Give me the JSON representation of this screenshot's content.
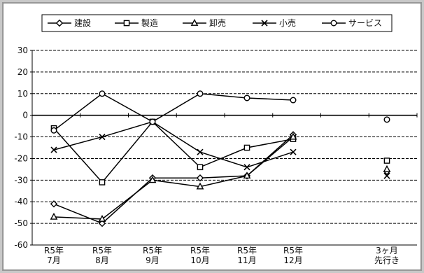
{
  "chart_data": {
    "type": "line",
    "categories": [
      [
        "R5年",
        "7月"
      ],
      [
        "R5年",
        "8月"
      ],
      [
        "R5年",
        "9月"
      ],
      [
        "R5年",
        "10月"
      ],
      [
        "R5年",
        "11月"
      ],
      [
        "R5年",
        "12月"
      ],
      [
        "3ヶ月",
        "先行き"
      ]
    ],
    "ylim": [
      -60,
      30
    ],
    "yticks": [
      30,
      20,
      10,
      0,
      -10,
      -20,
      -30,
      -40,
      -50,
      -60
    ],
    "grid": true,
    "legend_position": "top",
    "series": [
      {
        "name": "建設",
        "marker": "diamond",
        "values": [
          -41,
          -50,
          -29,
          -29,
          -28,
          -9,
          -26
        ]
      },
      {
        "name": "製造",
        "marker": "square",
        "values": [
          -6,
          -31,
          -3,
          -24,
          -15,
          -11,
          -21
        ]
      },
      {
        "name": "卸売",
        "marker": "triangle",
        "values": [
          -47,
          -48,
          -30,
          -33,
          -28,
          -10,
          -25
        ]
      },
      {
        "name": "小売",
        "marker": "cross",
        "values": [
          -16,
          -10,
          -3,
          -17,
          -24,
          -17,
          -28
        ]
      },
      {
        "name": "サービス",
        "marker": "circle",
        "values": [
          -7,
          10,
          -3,
          10,
          8,
          7,
          -2
        ]
      }
    ]
  }
}
